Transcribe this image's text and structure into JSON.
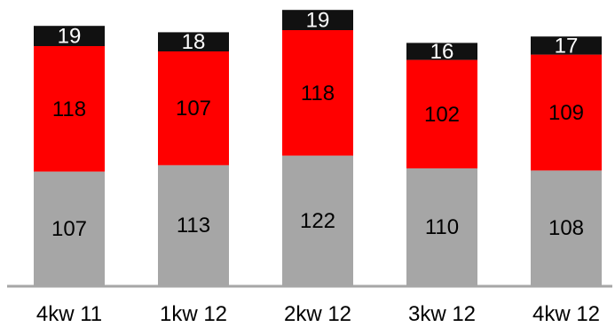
{
  "chart_data": {
    "type": "bar",
    "stacked": true,
    "categories": [
      "4kw 11",
      "1kw 12",
      "2kw 12",
      "3kw 12",
      "4kw 12"
    ],
    "series": [
      {
        "values": [
          107,
          113,
          122,
          110,
          108
        ],
        "color": "#a6a6a6"
      },
      {
        "values": [
          118,
          107,
          118,
          102,
          109
        ],
        "color": "#ff0000"
      },
      {
        "values": [
          19,
          18,
          19,
          16,
          17
        ],
        "color": "#111111"
      }
    ],
    "title": "",
    "xlabel": "",
    "ylabel": "",
    "ylim": [
      0,
      259
    ],
    "grid": false,
    "legend": "none",
    "axis_color": "#a6a6a6"
  }
}
